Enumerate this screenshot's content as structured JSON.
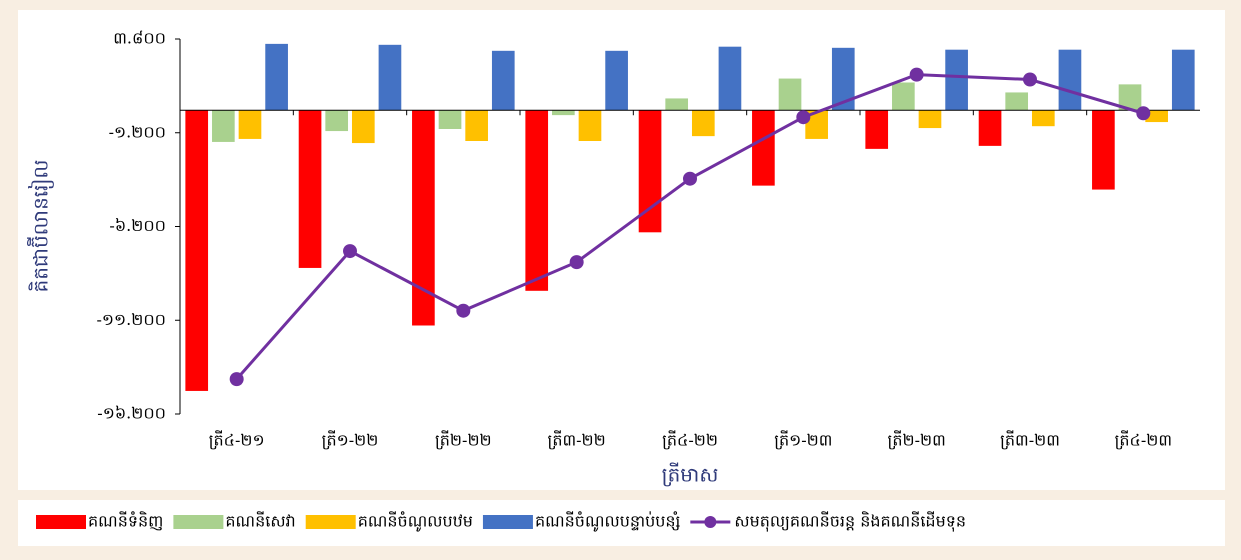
{
  "chart_data": {
    "type": "bar_line",
    "y_axis_label": "គិតជាប៊ីលានរៀល",
    "x_axis_label": "ត្រីមាស",
    "categories": [
      "ត្រី៤-២១",
      "ត្រី១-២២",
      "ត្រី២-២២",
      "ត្រី៣-២២",
      "ត្រី៤-២២",
      "ត្រី១-២៣",
      "ត្រី២-២៣",
      "ត្រី៣-២៣",
      "ត្រី៤-២៣"
    ],
    "series": [
      {
        "name": "គណនីទំនិញ",
        "type": "bar",
        "color": "#ff0000",
        "values": [
          -14970,
          -8410,
          -11480,
          -9630,
          -6510,
          -4020,
          -2060,
          -1900,
          -4230
        ]
      },
      {
        "name": "គណនីសេវា",
        "type": "bar",
        "color": "#a9d18e",
        "values": [
          -1690,
          -1110,
          -1000,
          -260,
          630,
          1690,
          1480,
          950,
          1380
        ]
      },
      {
        "name": "គណនីចំណូលបឋម",
        "type": "bar",
        "color": "#ffc000",
        "values": [
          -1530,
          -1750,
          -1640,
          -1640,
          -1380,
          -1530,
          -950,
          -850,
          -630
        ]
      },
      {
        "name": "គណនីចំណូលបន្ទាប់បន្សំ",
        "type": "bar",
        "color": "#4472c4",
        "values": [
          3540,
          3490,
          3170,
          3170,
          3390,
          3330,
          3230,
          3230,
          3230
        ]
      },
      {
        "name": "សមតុល្យគណនីចរន្ត និងគណនីដើមទុន",
        "type": "line",
        "color": "#7030a0",
        "values": [
          -14340,
          -7510,
          -10690,
          -8100,
          -3650,
          -370,
          1900,
          1640,
          -160
        ]
      }
    ],
    "ylim": [
      -16200,
      3800
    ],
    "yticks": [
      {
        "value": 3800,
        "label": "៣.៨០០"
      },
      {
        "value": -1200,
        "label": "-១.២០០"
      },
      {
        "value": -6200,
        "label": "-៦.២០០"
      },
      {
        "value": -11200,
        "label": "-១១.២០០"
      },
      {
        "value": -16200,
        "label": "-១៦.២០០"
      }
    ],
    "legend": "bottom"
  }
}
